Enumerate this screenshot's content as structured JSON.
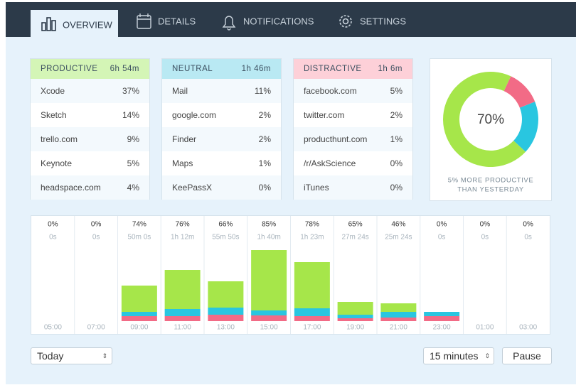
{
  "tabs": [
    "OVERVIEW",
    "DETAILS",
    "NOTIFICATIONS",
    "SETTINGS"
  ],
  "panels": [
    {
      "title": "PRODUCTIVE",
      "total": "6h 54m",
      "color": "#d4f5b6",
      "rows": [
        [
          "Xcode",
          "37%"
        ],
        [
          "Sketch",
          "14%"
        ],
        [
          "trello.com",
          "9%"
        ],
        [
          "Keynote",
          "5%"
        ],
        [
          "headspace.com",
          "4%"
        ]
      ]
    },
    {
      "title": "NEUTRAL",
      "total": "1h 46m",
      "color": "#b9e9f3",
      "rows": [
        [
          "Mail",
          "11%"
        ],
        [
          "google.com",
          "2%"
        ],
        [
          "Finder",
          "2%"
        ],
        [
          "Maps",
          "1%"
        ],
        [
          "KeePassX",
          "0%"
        ]
      ]
    },
    {
      "title": "DISTRACTIVE",
      "total": "1h 6m",
      "color": "#fdd0d8",
      "rows": [
        [
          "facebook.com",
          "5%"
        ],
        [
          "twitter.com",
          "2%"
        ],
        [
          "producthunt.com",
          "1%"
        ],
        [
          "/r/AskScience",
          "0%"
        ],
        [
          "iTunes",
          "0%"
        ]
      ]
    }
  ],
  "donut": {
    "values": [
      70,
      18,
      12
    ],
    "colors": [
      "#a6e64a",
      "#29c6e0",
      "#f26b86"
    ],
    "center_label": "70%",
    "caption": [
      "5% MORE PRODUCTIVE",
      "THAN YESTERDAY"
    ]
  },
  "timeline": {
    "percent": [
      "0%",
      "0%",
      "74%",
      "76%",
      "66%",
      "85%",
      "78%",
      "65%",
      "46%",
      "0%",
      "0%",
      "0%"
    ],
    "duration": [
      "0s",
      "0s",
      "50m 0s",
      "1h 12m",
      "55m 50s",
      "1h 40m",
      "1h 23m",
      "27m 24s",
      "25m 24s",
      "0s",
      "0s",
      "0s"
    ],
    "time": [
      "05:00",
      "07:00",
      "09:00",
      "11:00",
      "13:00",
      "15:00",
      "17:00",
      "19:00",
      "21:00",
      "23:00",
      "01:00",
      "03:00"
    ],
    "productive": [
      0,
      0,
      37,
      55,
      37,
      85,
      65,
      18,
      12,
      0,
      0,
      0
    ],
    "neutral": [
      0,
      0,
      6,
      10,
      10,
      7,
      11,
      5,
      8,
      6,
      0,
      0
    ],
    "distractive": [
      0,
      0,
      7,
      7,
      9,
      8,
      7,
      4,
      5,
      7,
      0,
      0
    ],
    "colors": [
      "#a6e64a",
      "#29c6e0",
      "#f26b86"
    ]
  },
  "controls": {
    "range": "Today",
    "interval": "15 minutes",
    "pause": "Pause"
  }
}
